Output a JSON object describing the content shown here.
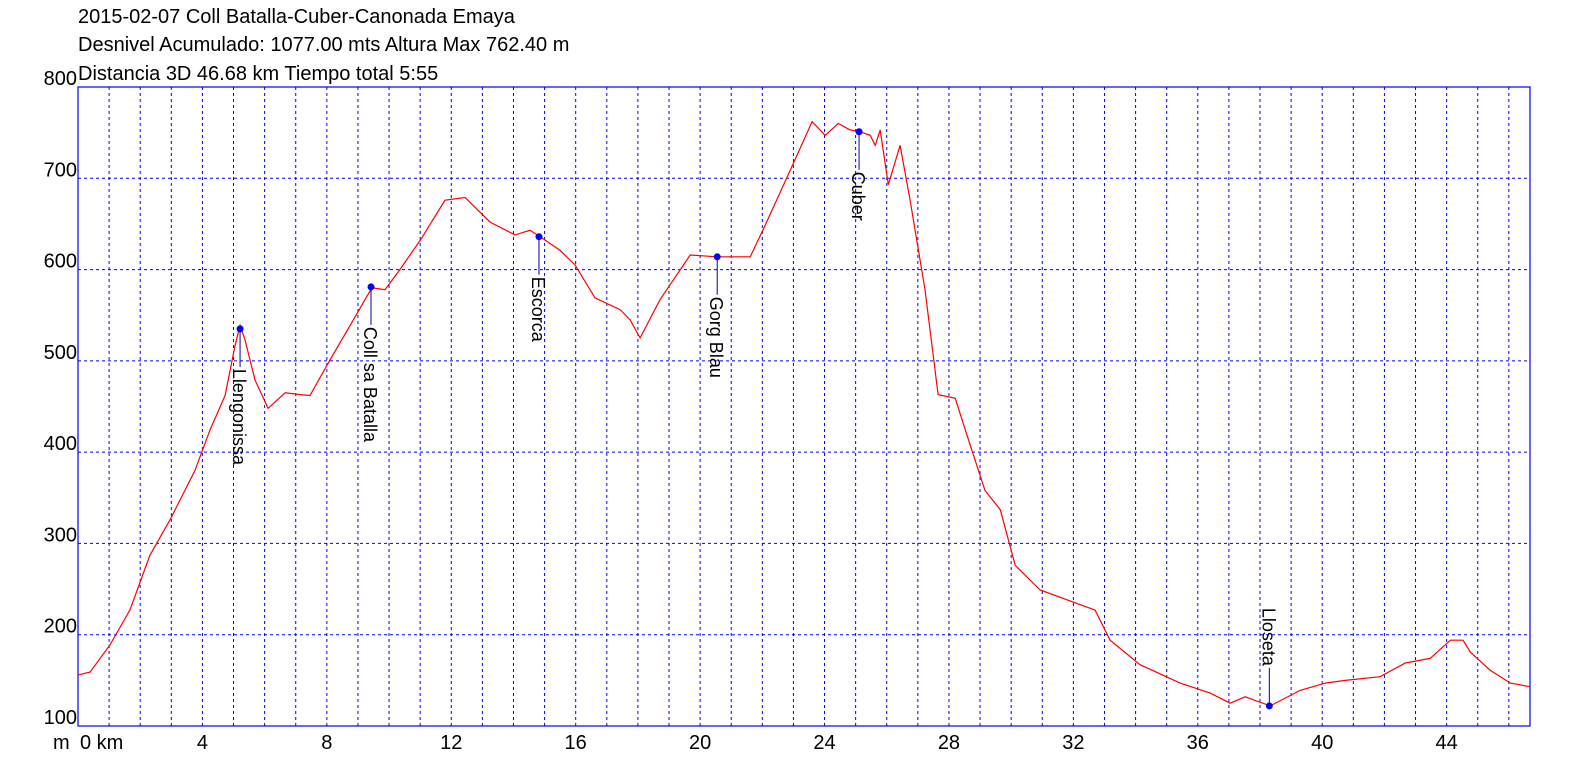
{
  "chart_data": {
    "type": "line",
    "title": "2015-02-07 Coll Batalla-Cuber-Canonada Emaya",
    "info": [
      "Desnivel Acumulado: 1077.00 mts  Altura Max 762.40 m",
      "Distancia 3D 46.68 km  Tiempo total 5:55"
    ],
    "y_unit": "m",
    "color": "#ff0000",
    "grid": true,
    "grid_color": "#0000ff",
    "x": [
      0,
      0.39,
      1.03,
      1.67,
      2.31,
      2.96,
      3.76,
      4.24,
      4.73,
      5.05,
      5.21,
      5.37,
      5.69,
      6.11,
      6.66,
      7.14,
      7.46,
      8.1,
      8.75,
      9.45,
      9.87,
      10.35,
      11.0,
      11.8,
      12.44,
      13.25,
      14.05,
      14.53,
      14.86,
      15.5,
      15.98,
      16.62,
      17.43,
      17.75,
      18.07,
      18.71,
      19.68,
      20.55,
      21.61,
      22.1,
      22.9,
      23.6,
      24.02,
      24.44,
      24.82,
      25.14,
      25.47,
      25.63,
      25.79,
      26.05,
      26.43,
      26.75,
      27.23,
      27.65,
      28.2,
      28.68,
      29.16,
      29.65,
      30.13,
      30.93,
      32.06,
      32.7,
      33.18,
      34.15,
      35.43,
      36.4,
      37.04,
      37.52,
      38.33,
      39.29,
      40.1,
      40.74,
      41.86,
      42.67,
      43.47,
      44.12,
      44.53,
      44.76,
      45.4,
      46.05,
      46.68
    ],
    "values": [
      156,
      159,
      189,
      227,
      287,
      326,
      380,
      424,
      462,
      517,
      539,
      523,
      479,
      448,
      465,
      463,
      462,
      501,
      539,
      580,
      578,
      600,
      632,
      676,
      679,
      652,
      638,
      643,
      636,
      621,
      605,
      569,
      556,
      545,
      525,
      567,
      616,
      614,
      614,
      649,
      709,
      762,
      747,
      760,
      753,
      751,
      747,
      736,
      753,
      693,
      736,
      676,
      578,
      463,
      459,
      408,
      358,
      337,
      276,
      249,
      235,
      227,
      194,
      167,
      147,
      136,
      125,
      132,
      122,
      139,
      147,
      150,
      154,
      169,
      174,
      194,
      194,
      181,
      161,
      147,
      143
    ],
    "waypoints": [
      {
        "label": "Llengonissa",
        "x": 5.21,
        "y": 535
      },
      {
        "label": "Coll sa Batalla",
        "x": 9.42,
        "y": 581
      },
      {
        "label": "Escorca",
        "x": 14.82,
        "y": 636
      },
      {
        "label": "Gorg Blau",
        "x": 20.55,
        "y": 614
      },
      {
        "label": "Cuber",
        "x": 25.11,
        "y": 751
      },
      {
        "label": "Lloseta",
        "x": 38.3,
        "y": 122
      }
    ],
    "xlim": [
      0,
      46.68
    ],
    "ylim": [
      100,
      800
    ],
    "xticks": [
      {
        "value": 0,
        "label": "0 km"
      },
      4,
      8,
      12,
      16,
      20,
      24,
      28,
      32,
      36,
      40,
      44
    ],
    "xgrid": [
      1,
      2,
      3,
      4,
      5,
      6,
      7,
      8,
      9,
      10,
      11,
      12,
      13,
      14,
      15,
      16,
      17,
      18,
      19,
      20,
      21,
      22,
      23,
      24,
      25,
      26,
      27,
      28,
      29,
      30,
      31,
      32,
      33,
      34,
      35,
      36,
      37,
      38,
      39,
      40,
      41,
      42,
      43,
      44,
      45,
      46
    ],
    "yticks": [
      100,
      200,
      300,
      400,
      500,
      600,
      700,
      800
    ]
  }
}
